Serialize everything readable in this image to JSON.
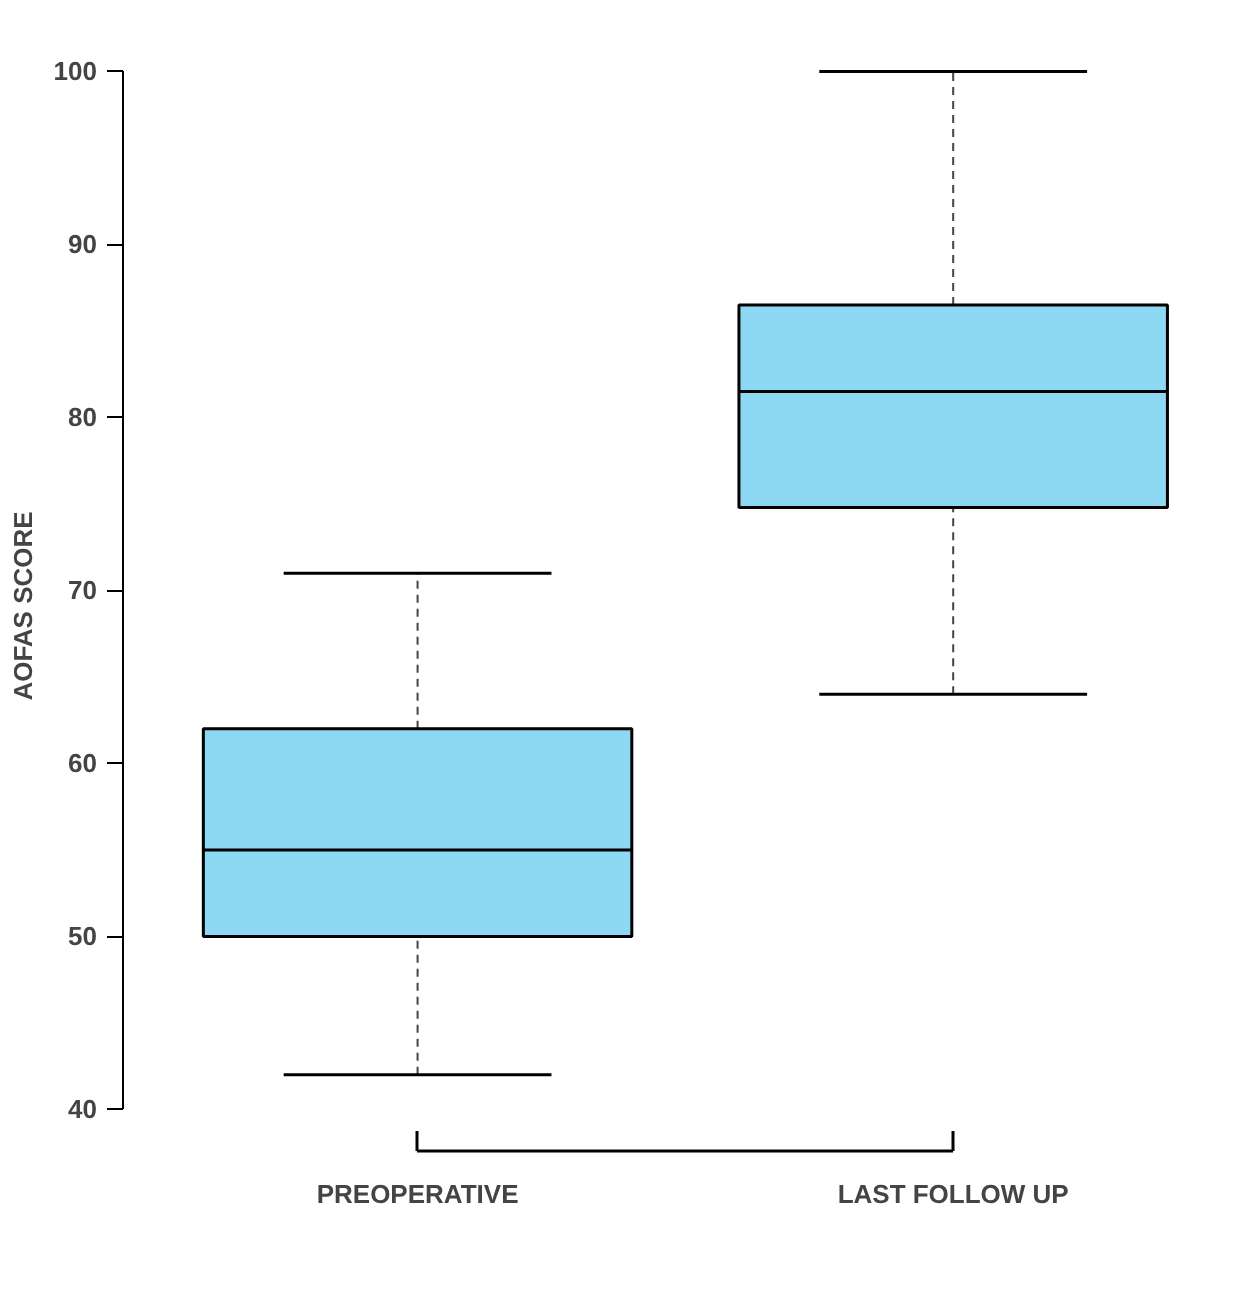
{
  "chart_data": {
    "type": "box",
    "ylabel": "AOFAS SCORE",
    "categories": [
      "PREOPERATIVE",
      "LAST FOLLOW UP"
    ],
    "boxes": [
      {
        "low": 42,
        "q1": 50,
        "median": 55,
        "q3": 62,
        "high": 71
      },
      {
        "low": 64,
        "q1": 74.8,
        "median": 81.5,
        "q3": 86.5,
        "high": 100
      }
    ],
    "color": "#8dd8f3",
    "ylim": [
      40,
      100
    ],
    "yticks": [
      40,
      50,
      60,
      70,
      80,
      90,
      100
    ],
    "grid": false
  }
}
